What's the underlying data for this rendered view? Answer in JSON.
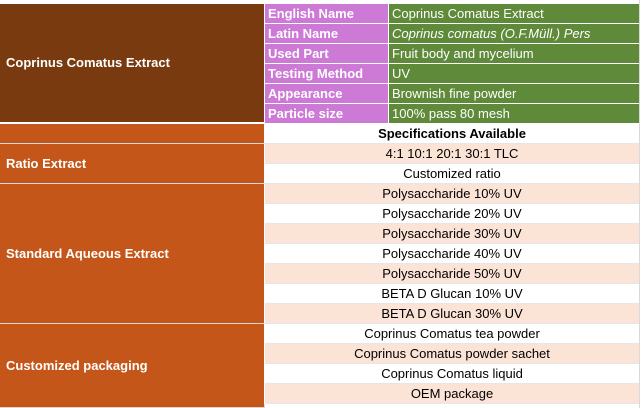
{
  "product": {
    "section_title": "Coprinus Comatus Extract",
    "info_rows": [
      {
        "label": "English Name",
        "value": "Coprinus Comatus Extract"
      },
      {
        "label": "Latin Name",
        "value": "Coprinus comatus (O.F.Müll.) Pers"
      },
      {
        "label": "Used Part",
        "value": "Fruit body and mycelium"
      },
      {
        "label": "Testing Method",
        "value": "UV"
      },
      {
        "label": "Appearance",
        "value": "Brownish fine powder"
      },
      {
        "label": "Particle size",
        "value": "100% pass 80 mesh"
      }
    ]
  },
  "specifications": {
    "header": "Specifications Available",
    "groups": [
      {
        "label": "Ratio Extract",
        "items": [
          "4:1 10:1 20:1 30:1 TLC",
          "Customized ratio"
        ]
      },
      {
        "label": "Standard Aqueous Extract",
        "items": [
          "Polysaccharide 10% UV",
          "Polysaccharide 20% UV",
          "Polysaccharide 30% UV",
          "Polysaccharide 40% UV",
          "Polysaccharide 50% UV",
          "BETA D Glucan 10% UV",
          "BETA D Glucan 30% UV"
        ]
      },
      {
        "label": "Customized packaging",
        "items": [
          "Coprinus Comatus tea powder",
          "Coprinus Comatus powder sachet",
          "Coprinus Comatus liquid",
          "OEM package"
        ]
      }
    ]
  }
}
